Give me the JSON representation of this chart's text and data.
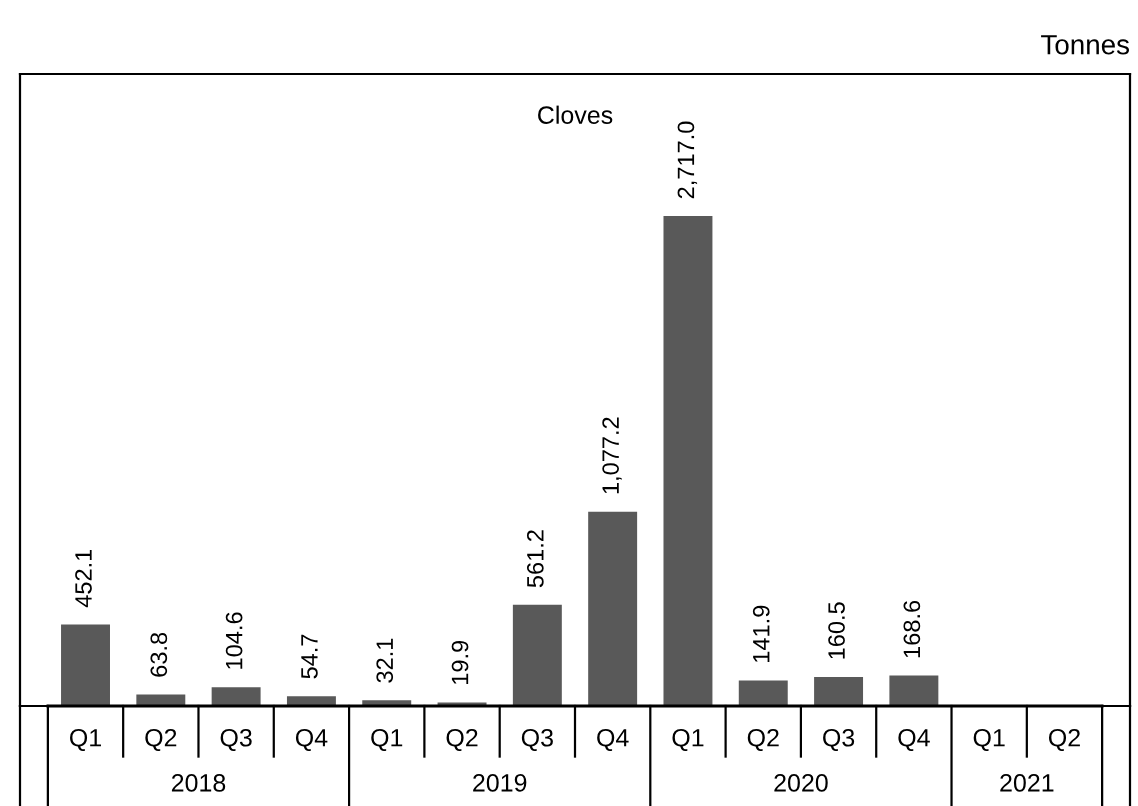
{
  "chart_data": {
    "type": "bar",
    "title": "Cloves",
    "categories": [
      "Q1",
      "Q2",
      "Q3",
      "Q4",
      "Q1",
      "Q2",
      "Q3",
      "Q4",
      "Q1",
      "Q2",
      "Q3",
      "Q4",
      "Q1",
      "Q2"
    ],
    "annotations": [
      "Tonnes",
      "2018",
      "2019",
      "2020",
      "2021"
    ],
    "values": [
      452.1,
      63.8,
      104.6,
      54.7,
      32.1,
      19.9,
      561.2,
      1077.2,
      2717.0,
      141.9,
      160.5,
      168.6,
      null,
      null
    ],
    "value_labels": [
      "452.1",
      "63.8",
      "104.6",
      "54.7",
      "32.1",
      "19.9",
      "561.2",
      "1,077.2",
      "2,717.0",
      "141.9",
      "160.5",
      "168.6",
      null,
      null
    ],
    "color": "#595959",
    "grid": false,
    "legend": false
  }
}
